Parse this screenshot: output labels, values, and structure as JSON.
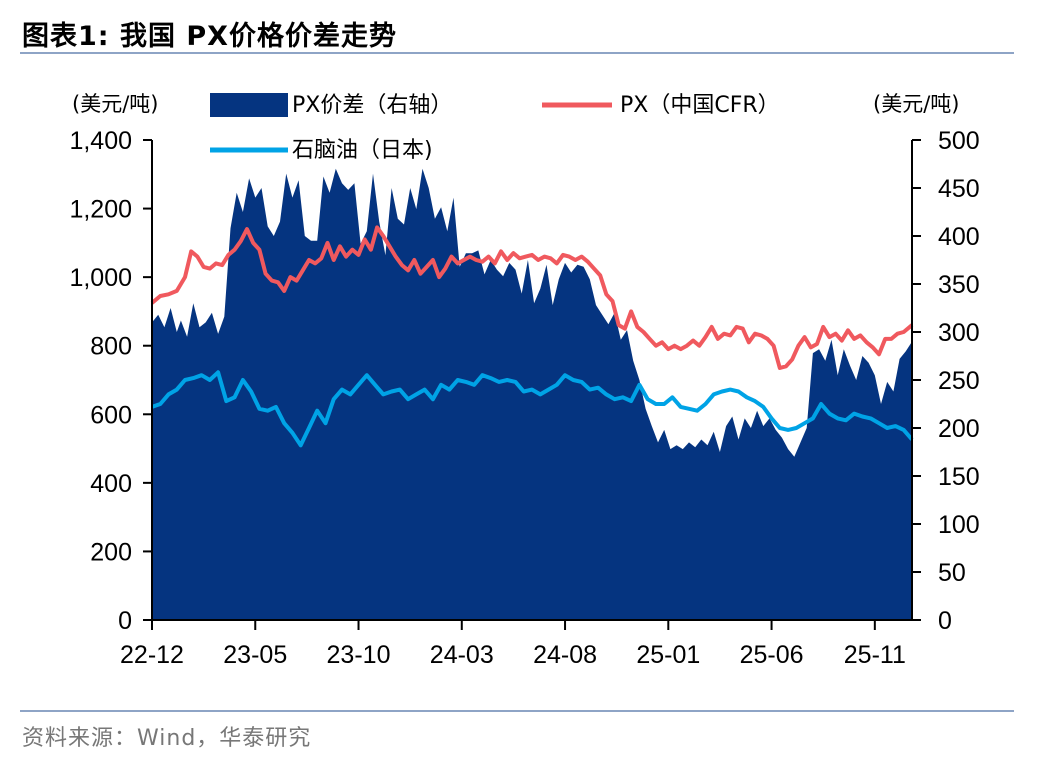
{
  "header": {
    "title": "图表1:   我国 PX价格价差走势"
  },
  "footer": {
    "source": "资料来源：Wind，华泰研究"
  },
  "chart_data": {
    "type": "area",
    "left_axis": {
      "unit": "(美元/吨)",
      "ylim": [
        0,
        1400
      ],
      "ticks": [
        "0",
        "200",
        "400",
        "600",
        "800",
        "1,000",
        "1,200",
        "1,400"
      ]
    },
    "right_axis": {
      "unit": "(美元/吨)",
      "ylim": [
        0,
        500
      ],
      "ticks": [
        "0",
        "50",
        "100",
        "150",
        "200",
        "250",
        "300",
        "350",
        "400",
        "450",
        "500"
      ]
    },
    "x_tick_labels": [
      "22-12",
      "23-05",
      "23-10",
      "24-03",
      "24-08",
      "25-01",
      "25-06",
      "25-11"
    ],
    "x_range": [
      0,
      36.8
    ],
    "x_note": "x values are months since 2022-12",
    "grid": false,
    "legend": {
      "placement": "top"
    },
    "series": [
      {
        "name": "PX价差（右轴）",
        "type": "area",
        "axis": "right",
        "color": "#053480",
        "x": [
          0,
          0.3,
          0.6,
          0.9,
          1.2,
          1.4,
          1.7,
          2.0,
          2.3,
          2.6,
          2.9,
          3.2,
          3.5,
          3.8,
          4.1,
          4.4,
          4.7,
          5.0,
          5.3,
          5.6,
          5.9,
          6.2,
          6.5,
          6.8,
          7.1,
          7.4,
          7.7,
          8.0,
          8.3,
          8.6,
          8.9,
          9.2,
          9.5,
          9.8,
          10.1,
          10.4,
          10.7,
          11.0,
          11.3,
          11.6,
          11.9,
          12.2,
          12.5,
          12.8,
          13.1,
          13.4,
          13.7,
          14.0,
          14.3,
          14.6,
          14.9,
          15.2,
          15.5,
          15.8,
          16.1,
          16.4,
          16.7,
          17.0,
          17.3,
          17.6,
          17.9,
          18.2,
          18.5,
          18.8,
          19.1,
          19.4,
          19.7,
          20.0,
          20.3,
          20.6,
          20.9,
          21.2,
          21.5,
          21.8,
          22.1,
          22.4,
          22.7,
          23.0,
          23.3,
          23.6,
          23.9,
          24.2,
          24.5,
          24.8,
          25.1,
          25.4,
          25.7,
          26.0,
          26.3,
          26.6,
          26.9,
          27.2,
          27.5,
          27.8,
          28.1,
          28.4,
          28.7,
          29.0,
          29.3,
          29.6,
          29.9,
          30.2,
          30.5,
          30.8,
          31.1,
          31.4,
          31.7,
          32.0,
          32.3,
          32.6,
          32.9,
          33.2,
          33.5,
          33.8,
          34.1,
          34.4,
          34.7,
          35.0,
          35.3,
          35.6,
          35.9,
          36.2,
          36.5,
          36.8
        ],
        "values": [
          310,
          318,
          305,
          325,
          300,
          312,
          295,
          330,
          305,
          310,
          320,
          298,
          316,
          408,
          445,
          425,
          460,
          440,
          450,
          410,
          400,
          415,
          465,
          440,
          458,
          400,
          395,
          395,
          462,
          445,
          470,
          455,
          448,
          455,
          392,
          405,
          465,
          415,
          380,
          450,
          418,
          412,
          450,
          428,
          470,
          450,
          418,
          430,
          405,
          440,
          368,
          382,
          382,
          385,
          360,
          375,
          365,
          358,
          372,
          365,
          340,
          375,
          330,
          345,
          370,
          328,
          355,
          372,
          362,
          370,
          368,
          355,
          328,
          318,
          308,
          320,
          292,
          302,
          270,
          250,
          220,
          202,
          185,
          198,
          178,
          182,
          178,
          185,
          180,
          188,
          182,
          196,
          175,
          202,
          212,
          188,
          210,
          200,
          218,
          202,
          210,
          198,
          190,
          178,
          170,
          185,
          200,
          278,
          282,
          270,
          292,
          255,
          282,
          265,
          250,
          275,
          268,
          255,
          225,
          248,
          238,
          272,
          280,
          290
        ]
      },
      {
        "name": "PX（中国CFR）",
        "type": "line",
        "axis": "left",
        "color": "#f0595e",
        "x": [
          0,
          0.4,
          0.8,
          1.2,
          1.6,
          1.9,
          2.2,
          2.5,
          2.8,
          3.1,
          3.4,
          3.7,
          4.0,
          4.3,
          4.6,
          4.9,
          5.2,
          5.5,
          5.8,
          6.1,
          6.4,
          6.7,
          7.0,
          7.3,
          7.6,
          7.9,
          8.2,
          8.5,
          8.8,
          9.1,
          9.4,
          9.7,
          10.0,
          10.3,
          10.6,
          10.9,
          11.2,
          11.5,
          11.8,
          12.1,
          12.4,
          12.7,
          13.0,
          13.3,
          13.6,
          13.9,
          14.2,
          14.5,
          14.8,
          15.1,
          15.4,
          15.7,
          16.0,
          16.3,
          16.6,
          16.9,
          17.2,
          17.5,
          17.8,
          18.1,
          18.4,
          18.7,
          19.0,
          19.3,
          19.6,
          19.9,
          20.2,
          20.5,
          20.8,
          21.1,
          21.4,
          21.7,
          22.0,
          22.3,
          22.6,
          22.9,
          23.2,
          23.5,
          23.8,
          24.1,
          24.4,
          24.7,
          25.0,
          25.3,
          25.6,
          25.9,
          26.2,
          26.5,
          26.8,
          27.1,
          27.4,
          27.7,
          28.0,
          28.3,
          28.6,
          28.9,
          29.2,
          29.5,
          29.8,
          30.1,
          30.4,
          30.7,
          31.0,
          31.3,
          31.6,
          31.9,
          32.2,
          32.5,
          32.8,
          33.1,
          33.4,
          33.7,
          34.0,
          34.3,
          34.6,
          34.9,
          35.2,
          35.5,
          35.8,
          36.1,
          36.4,
          36.8
        ],
        "values": [
          925,
          945,
          950,
          960,
          1000,
          1075,
          1060,
          1030,
          1025,
          1040,
          1035,
          1065,
          1080,
          1105,
          1140,
          1100,
          1080,
          1010,
          990,
          985,
          960,
          1000,
          990,
          1020,
          1050,
          1040,
          1055,
          1100,
          1050,
          1090,
          1060,
          1080,
          1065,
          1110,
          1080,
          1145,
          1120,
          1090,
          1060,
          1035,
          1020,
          1050,
          1010,
          1030,
          1050,
          1000,
          1025,
          1060,
          1040,
          1050,
          1060,
          1050,
          1045,
          1060,
          1040,
          1075,
          1050,
          1070,
          1055,
          1060,
          1065,
          1050,
          1060,
          1055,
          1040,
          1065,
          1060,
          1050,
          1060,
          1045,
          1025,
          1005,
          950,
          930,
          860,
          850,
          900,
          855,
          840,
          820,
          800,
          810,
          790,
          800,
          790,
          800,
          815,
          800,
          825,
          855,
          820,
          835,
          830,
          855,
          850,
          810,
          835,
          830,
          820,
          800,
          735,
          740,
          760,
          800,
          825,
          795,
          805,
          855,
          825,
          835,
          815,
          845,
          820,
          830,
          810,
          795,
          775,
          820,
          820,
          835,
          840,
          860
        ]
      },
      {
        "name": "石脑油（日本)",
        "type": "line",
        "axis": "right",
        "color": "#00a3e6",
        "x": [
          0,
          0.4,
          0.8,
          1.2,
          1.6,
          2.0,
          2.4,
          2.8,
          3.2,
          3.6,
          4.0,
          4.4,
          4.8,
          5.2,
          5.6,
          6.0,
          6.4,
          6.8,
          7.2,
          7.6,
          8.0,
          8.4,
          8.8,
          9.2,
          9.6,
          10.0,
          10.4,
          10.8,
          11.2,
          11.6,
          12.0,
          12.4,
          12.8,
          13.2,
          13.6,
          14.0,
          14.4,
          14.8,
          15.2,
          15.6,
          16.0,
          16.4,
          16.8,
          17.2,
          17.6,
          18.0,
          18.4,
          18.8,
          19.2,
          19.6,
          20.0,
          20.4,
          20.8,
          21.2,
          21.6,
          22.0,
          22.4,
          22.8,
          23.2,
          23.6,
          24.0,
          24.4,
          24.8,
          25.2,
          25.6,
          26.0,
          26.4,
          26.8,
          27.2,
          27.6,
          28.0,
          28.4,
          28.8,
          29.2,
          29.6,
          30.0,
          30.4,
          30.8,
          31.2,
          31.6,
          32.0,
          32.4,
          32.8,
          33.2,
          33.6,
          34.0,
          34.4,
          34.8,
          35.2,
          35.6,
          36.0,
          36.4,
          36.8
        ],
        "values": [
          222,
          225,
          235,
          240,
          250,
          252,
          255,
          250,
          258,
          228,
          232,
          250,
          238,
          220,
          218,
          222,
          205,
          195,
          182,
          200,
          218,
          205,
          230,
          240,
          235,
          245,
          255,
          245,
          235,
          238,
          240,
          230,
          235,
          240,
          230,
          245,
          240,
          250,
          248,
          245,
          255,
          252,
          248,
          250,
          248,
          238,
          240,
          235,
          240,
          245,
          255,
          250,
          248,
          240,
          242,
          235,
          230,
          232,
          228,
          245,
          230,
          225,
          225,
          232,
          222,
          220,
          218,
          225,
          235,
          238,
          240,
          238,
          232,
          228,
          222,
          210,
          200,
          198,
          200,
          205,
          210,
          225,
          215,
          210,
          208,
          215,
          212,
          210,
          205,
          200,
          202,
          198,
          188
        ]
      }
    ]
  }
}
